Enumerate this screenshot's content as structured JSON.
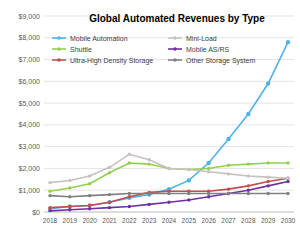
{
  "chart_data": {
    "type": "line",
    "title": "Global Automated Revenues by Type",
    "categories": [
      "2018",
      "2019",
      "2020",
      "2021",
      "2022",
      "2023",
      "2024",
      "2025",
      "2026",
      "2027",
      "2028",
      "2029",
      "2030"
    ],
    "series": [
      {
        "name": "Mobile Automation",
        "color": "#4fb3e8",
        "marker": "circle",
        "values": [
          150,
          250,
          300,
          450,
          650,
          800,
          1050,
          1450,
          2250,
          3350,
          4500,
          5900,
          7800
        ]
      },
      {
        "name": "Shuttle",
        "color": "#92d050",
        "marker": "circle",
        "values": [
          950,
          1100,
          1300,
          1800,
          2250,
          2200,
          2000,
          1950,
          2000,
          2150,
          2200,
          2250,
          2250
        ]
      },
      {
        "name": "Ultra-High Density Storage",
        "color": "#c0504d",
        "marker": "circle",
        "values": [
          200,
          250,
          300,
          450,
          700,
          900,
          950,
          950,
          950,
          1050,
          1200,
          1400,
          1550
        ]
      },
      {
        "name": "Mini-Load",
        "color": "#c9c0c0",
        "marker": "circle",
        "values": [
          1350,
          1450,
          1650,
          2050,
          2650,
          2400,
          2000,
          1950,
          1850,
          1750,
          1650,
          1600,
          1550
        ]
      },
      {
        "name": "Mobile AS/RS",
        "color": "#7030a0",
        "marker": "circle",
        "values": [
          50,
          100,
          150,
          200,
          250,
          350,
          450,
          550,
          700,
          850,
          1000,
          1200,
          1400
        ]
      },
      {
        "name": "Other Storage System",
        "color": "#808080",
        "marker": "circle",
        "values": [
          750,
          700,
          750,
          800,
          850,
          850,
          850,
          850,
          850,
          850,
          850,
          850,
          850
        ]
      }
    ],
    "ylim": [
      0,
      9000
    ],
    "yticks": [
      {
        "value": 0,
        "label": "$0"
      },
      {
        "value": 1000,
        "label": "$1,000"
      },
      {
        "value": 2000,
        "label": "$2,000"
      },
      {
        "value": 3000,
        "label": "$3,000"
      },
      {
        "value": 4000,
        "label": "$4,000"
      },
      {
        "value": 5000,
        "label": "$5,000"
      },
      {
        "value": 6000,
        "label": "$6,000"
      },
      {
        "value": 7000,
        "label": "$7,000"
      },
      {
        "value": 8000,
        "label": "$8,000"
      },
      {
        "value": 9000,
        "label": "$9,000"
      }
    ],
    "grid": true,
    "legend": "upper left"
  }
}
